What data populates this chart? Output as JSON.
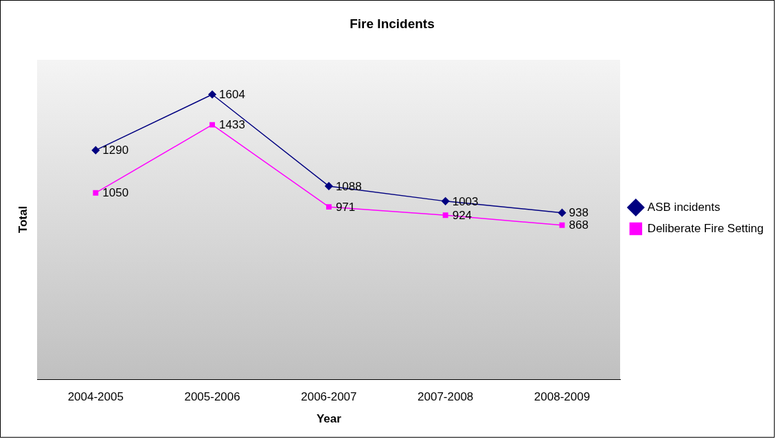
{
  "chart_data": {
    "type": "line",
    "title": "Fire Incidents",
    "xlabel": "Year",
    "ylabel": "Total",
    "categories": [
      "2004-2005",
      "2005-2006",
      "2006-2007",
      "2007-2008",
      "2008-2009"
    ],
    "series": [
      {
        "name": "ASB incidents",
        "color": "#000080",
        "marker": "diamond",
        "values": [
          1290,
          1604,
          1088,
          1003,
          938
        ]
      },
      {
        "name": "Deliberate Fire Setting",
        "color": "#ff00ff",
        "marker": "square",
        "values": [
          1050,
          1433,
          971,
          924,
          868
        ]
      }
    ],
    "ylim": [
      0,
      1800
    ],
    "tick_labels": "x",
    "data_labels": true,
    "legend": "right",
    "grid": false,
    "line_style": "solid"
  }
}
